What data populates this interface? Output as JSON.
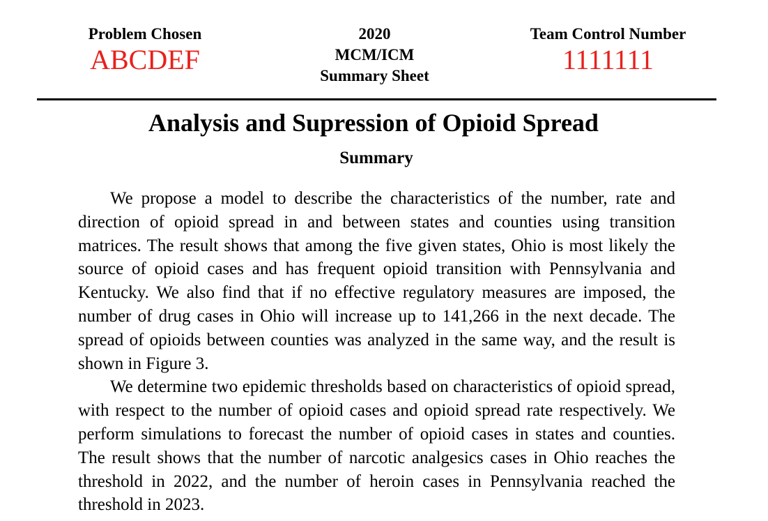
{
  "header": {
    "problem_label": "Problem Chosen",
    "problem_value": "ABCDEF",
    "year": "2020",
    "contest": "MCM/ICM",
    "sheet": "Summary Sheet",
    "team_label": "Team Control Number",
    "team_value": "1111111"
  },
  "title": "Analysis and Supression of Opioid Spread",
  "section_heading": "Summary",
  "paragraphs": [
    "We propose a model to describe the characteristics of the number, rate and direction of opioid spread in and between states and counties using transition matrices. The result shows that among the five given states, Ohio is most likely the source of opioid cases and has frequent opioid transition with Pennsylvania and Kentucky. We also find that if no effective regulatory measures are imposed, the number of drug cases in Ohio will increase up to 141,266 in the next decade. The spread of opioids between counties was analyzed in the same way, and the result is shown in Figure 3.",
    "We determine two epidemic thresholds based on characteristics of opioid spread, with respect to the number of opioid cases and opioid spread rate respec­tively. We perform simulations to forecast the number of opioid cases in states and counties. The result shows that the number of narcotic analgesics cases in Ohio reaches the threshold in 2022, and the number of heroin cases in Pennsyl­vania reached the threshold in 2023."
  ]
}
